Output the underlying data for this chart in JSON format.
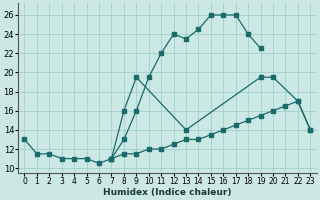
{
  "xlabel": "Humidex (Indice chaleur)",
  "bg_color": "#cce8e4",
  "grid_color": "#99ccc8",
  "line_color": "#1a6b6b",
  "xlim": [
    -0.5,
    23.5
  ],
  "ylim": [
    9.5,
    27.2
  ],
  "xticks": [
    0,
    1,
    2,
    3,
    4,
    5,
    6,
    7,
    8,
    9,
    10,
    11,
    12,
    13,
    14,
    15,
    16,
    17,
    18,
    19,
    20,
    21,
    22,
    23
  ],
  "yticks": [
    10,
    12,
    14,
    16,
    18,
    20,
    22,
    24,
    26
  ],
  "series": [
    {
      "x": [
        0,
        1,
        2,
        3,
        4,
        5,
        6,
        7,
        8,
        9,
        10,
        11,
        12,
        13,
        14,
        15,
        16,
        17,
        18,
        19
      ],
      "y": [
        13,
        11.5,
        11.5,
        11,
        11,
        11,
        10.5,
        11,
        13,
        16,
        19.5,
        22,
        24,
        23.5,
        24.5,
        26,
        26,
        26,
        24,
        22.5
      ]
    },
    {
      "x": [
        7,
        8,
        9,
        13,
        19,
        20,
        22,
        23
      ],
      "y": [
        11,
        16,
        19.5,
        14,
        19.5,
        19.5,
        17,
        14
      ]
    },
    {
      "x": [
        7,
        8,
        9,
        10,
        11,
        12,
        13,
        14,
        15,
        16,
        17,
        18,
        19,
        20,
        21,
        22,
        23
      ],
      "y": [
        11,
        11.5,
        11.5,
        12,
        12,
        12.5,
        13,
        13,
        13.5,
        14,
        14.5,
        15,
        15.5,
        16,
        16.5,
        17,
        14
      ]
    }
  ]
}
